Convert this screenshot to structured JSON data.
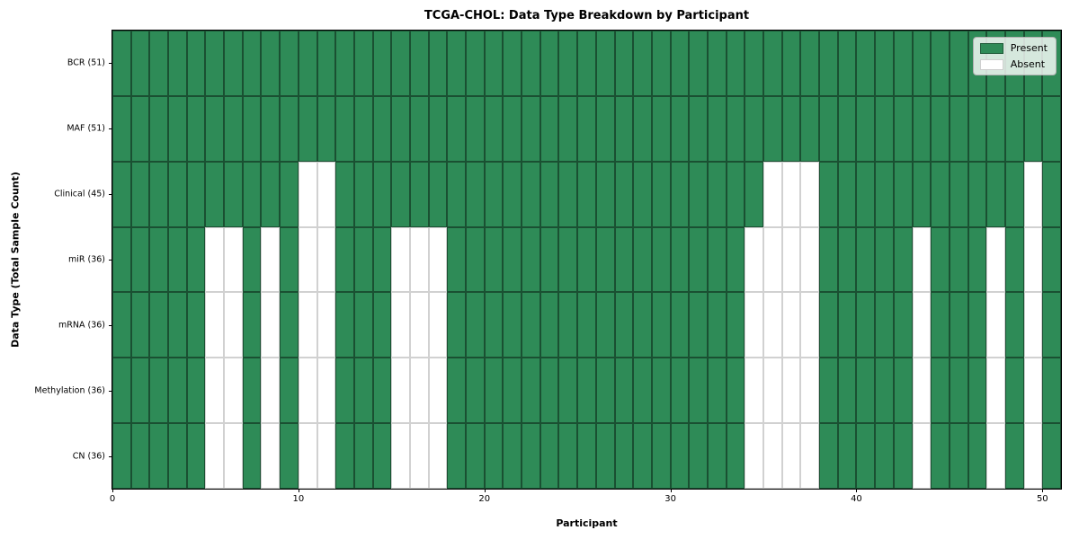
{
  "chart_data": {
    "type": "heatmap",
    "title": "TCGA-CHOL: Data Type Breakdown by Participant",
    "xlabel": "Participant",
    "ylabel": "Data Type (Total Sample Count)",
    "n_participants": 51,
    "x_ticks": [
      0,
      10,
      20,
      30,
      40,
      50
    ],
    "cell_states": [
      "Present",
      "Absent"
    ],
    "colors": {
      "present": "#2e8b57",
      "absent": "#ffffff"
    },
    "legend": [
      {
        "label": "Present",
        "state": "present"
      },
      {
        "label": "Absent",
        "state": "absent"
      }
    ],
    "rows": [
      {
        "name": "BCR",
        "label": "BCR (51)",
        "total_present": 51,
        "absent_participants": []
      },
      {
        "name": "MAF",
        "label": "MAF (51)",
        "total_present": 51,
        "absent_participants": []
      },
      {
        "name": "Clinical",
        "label": "Clinical (45)",
        "total_present": 45,
        "absent_participants": [
          10,
          11,
          35,
          36,
          37,
          49
        ]
      },
      {
        "name": "miR",
        "label": "miR (36)",
        "total_present": 36,
        "absent_participants": [
          5,
          6,
          8,
          10,
          11,
          15,
          16,
          17,
          34,
          35,
          36,
          37,
          43,
          47,
          49
        ]
      },
      {
        "name": "mRNA",
        "label": "mRNA (36)",
        "total_present": 36,
        "absent_participants": [
          5,
          6,
          8,
          10,
          11,
          15,
          16,
          17,
          34,
          35,
          36,
          37,
          43,
          47,
          49
        ]
      },
      {
        "name": "Methylation",
        "label": "Methylation (36)",
        "total_present": 36,
        "absent_participants": [
          5,
          6,
          8,
          10,
          11,
          15,
          16,
          17,
          34,
          35,
          36,
          37,
          43,
          47,
          49
        ]
      },
      {
        "name": "CN",
        "label": "CN (36)",
        "total_present": 36,
        "absent_participants": [
          5,
          6,
          8,
          10,
          11,
          15,
          16,
          17,
          34,
          35,
          36,
          37,
          43,
          47,
          49
        ]
      }
    ]
  }
}
